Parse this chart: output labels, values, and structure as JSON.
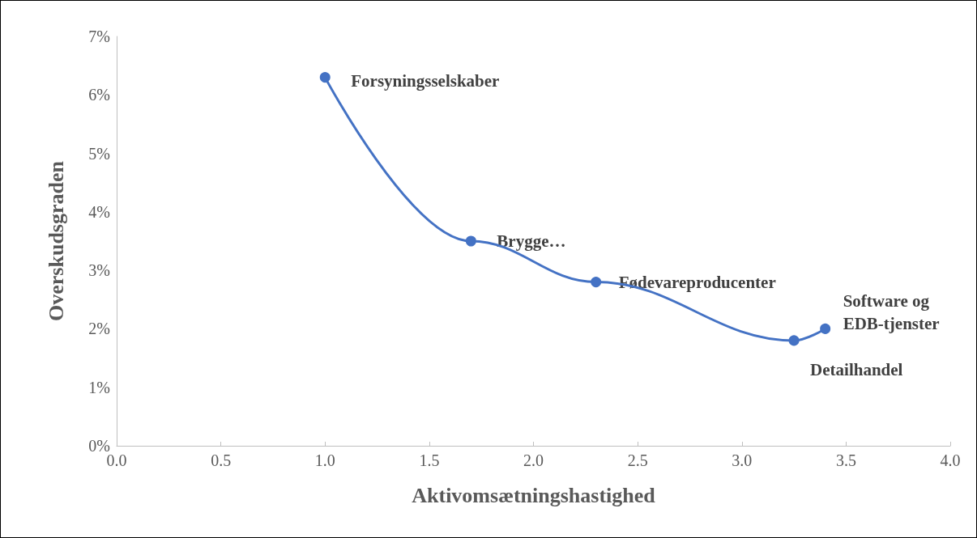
{
  "chart_data": {
    "type": "line",
    "xlabel": "Aktivomsætningshastighed",
    "ylabel": "Overskudsgraden",
    "x": [
      1.0,
      1.7,
      2.3,
      3.25,
      3.4
    ],
    "series": [
      {
        "color": "#4472c4",
        "values": [
          6.3,
          3.5,
          2.8,
          1.8,
          2.0
        ]
      }
    ],
    "xlim": [
      0,
      4
    ],
    "xticks": [
      {
        "value": 0,
        "label": "0.0"
      },
      {
        "value": 0.5,
        "label": "0.5"
      },
      {
        "value": 1,
        "label": "1.0"
      },
      {
        "value": 1.5,
        "label": "1.5"
      },
      {
        "value": 2,
        "label": "2.0"
      },
      {
        "value": 2.5,
        "label": "2.5"
      },
      {
        "value": 3,
        "label": "3.0"
      },
      {
        "value": 3.5,
        "label": "3.5"
      },
      {
        "value": 4,
        "label": "4.0"
      }
    ],
    "ylim": [
      0,
      7
    ],
    "yticks": [
      {
        "value": 0,
        "label": "0%"
      },
      {
        "value": 1,
        "label": "1%"
      },
      {
        "value": 2,
        "label": "2%"
      },
      {
        "value": 3,
        "label": "3%"
      },
      {
        "value": 4,
        "label": "4%"
      },
      {
        "value": 5,
        "label": "5%"
      },
      {
        "value": 6,
        "label": "6%"
      },
      {
        "value": 7,
        "label": "7%"
      }
    ],
    "annotations": [
      {
        "text": "Forsyningsselskaber",
        "x": 1.0,
        "y": 6.3
      },
      {
        "text": "Brygge…",
        "x": 1.7,
        "y": 3.5
      },
      {
        "text": "Fødevareproducenter",
        "x": 2.3,
        "y": 2.8
      },
      {
        "text": "Detailhandel",
        "x": 3.25,
        "y": 1.8
      },
      {
        "text": "Software og\nEDB-tjenster",
        "x": 3.4,
        "y": 2.0
      }
    ],
    "grid": false,
    "marker": "circle",
    "line_style": "solid"
  }
}
